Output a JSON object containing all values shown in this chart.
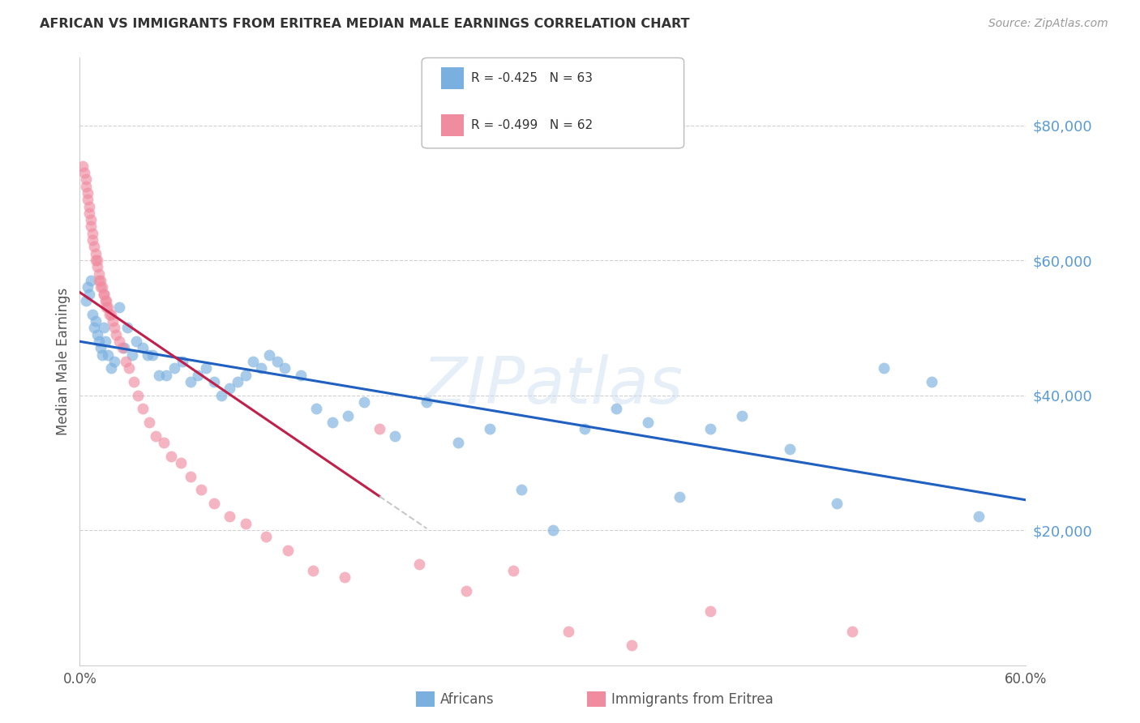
{
  "title": "AFRICAN VS IMMIGRANTS FROM ERITREA MEDIAN MALE EARNINGS CORRELATION CHART",
  "source": "Source: ZipAtlas.com",
  "ylabel": "Median Male Earnings",
  "xlabel_africans": "Africans",
  "xlabel_eritrea": "Immigrants from Eritrea",
  "watermark": "ZIPatlas",
  "legend_african_r": "R = -0.425",
  "legend_african_n": "N = 63",
  "legend_eritrea_r": "R = -0.499",
  "legend_eritrea_n": "N = 62",
  "xlim": [
    0.0,
    0.6
  ],
  "ylim": [
    0,
    90000
  ],
  "yticks": [
    20000,
    40000,
    60000,
    80000
  ],
  "ytick_labels": [
    "$20,000",
    "$40,000",
    "$60,000",
    "$80,000"
  ],
  "xtick_labels": [
    "0.0%",
    "60.0%"
  ],
  "color_african": "#7ab0e0",
  "color_eritrea": "#f08ca0",
  "color_trendline_african": "#2060c0",
  "color_trendline_eritrea": "#c0204a",
  "color_trendline_eritrea_dashed": "#c8c8c8",
  "background_color": "#ffffff",
  "african_x": [
    0.004,
    0.005,
    0.006,
    0.007,
    0.008,
    0.009,
    0.01,
    0.011,
    0.012,
    0.013,
    0.014,
    0.015,
    0.016,
    0.018,
    0.02,
    0.022,
    0.025,
    0.028,
    0.03,
    0.033,
    0.036,
    0.04,
    0.043,
    0.046,
    0.05,
    0.055,
    0.06,
    0.065,
    0.07,
    0.075,
    0.08,
    0.085,
    0.09,
    0.095,
    0.1,
    0.105,
    0.11,
    0.115,
    0.12,
    0.125,
    0.13,
    0.14,
    0.15,
    0.16,
    0.17,
    0.18,
    0.2,
    0.22,
    0.24,
    0.26,
    0.28,
    0.3,
    0.32,
    0.34,
    0.36,
    0.38,
    0.4,
    0.42,
    0.45,
    0.48,
    0.51,
    0.54,
    0.57
  ],
  "african_y": [
    54000,
    56000,
    55000,
    57000,
    52000,
    50000,
    51000,
    49000,
    48000,
    47000,
    46000,
    50000,
    48000,
    46000,
    44000,
    45000,
    53000,
    47000,
    50000,
    46000,
    48000,
    47000,
    46000,
    46000,
    43000,
    43000,
    44000,
    45000,
    42000,
    43000,
    44000,
    42000,
    40000,
    41000,
    42000,
    43000,
    45000,
    44000,
    46000,
    45000,
    44000,
    43000,
    38000,
    36000,
    37000,
    39000,
    34000,
    39000,
    33000,
    35000,
    26000,
    20000,
    35000,
    38000,
    36000,
    25000,
    35000,
    37000,
    32000,
    24000,
    44000,
    42000,
    22000
  ],
  "eritrea_x": [
    0.002,
    0.003,
    0.004,
    0.004,
    0.005,
    0.005,
    0.006,
    0.006,
    0.007,
    0.007,
    0.008,
    0.008,
    0.009,
    0.01,
    0.01,
    0.011,
    0.011,
    0.012,
    0.012,
    0.013,
    0.013,
    0.014,
    0.015,
    0.015,
    0.016,
    0.017,
    0.017,
    0.018,
    0.019,
    0.02,
    0.021,
    0.022,
    0.023,
    0.025,
    0.027,
    0.029,
    0.031,
    0.034,
    0.037,
    0.04,
    0.044,
    0.048,
    0.053,
    0.058,
    0.064,
    0.07,
    0.077,
    0.085,
    0.095,
    0.105,
    0.118,
    0.132,
    0.148,
    0.168,
    0.19,
    0.215,
    0.245,
    0.275,
    0.31,
    0.35,
    0.4,
    0.49
  ],
  "eritrea_y": [
    74000,
    73000,
    72000,
    71000,
    70000,
    69000,
    68000,
    67000,
    66000,
    65000,
    64000,
    63000,
    62000,
    61000,
    60000,
    60000,
    59000,
    58000,
    57000,
    57000,
    56000,
    56000,
    55000,
    55000,
    54000,
    54000,
    53000,
    53000,
    52000,
    52000,
    51000,
    50000,
    49000,
    48000,
    47000,
    45000,
    44000,
    42000,
    40000,
    38000,
    36000,
    34000,
    33000,
    31000,
    30000,
    28000,
    26000,
    24000,
    22000,
    21000,
    19000,
    17000,
    14000,
    13000,
    35000,
    15000,
    11000,
    14000,
    5000,
    3000,
    8000,
    5000
  ]
}
